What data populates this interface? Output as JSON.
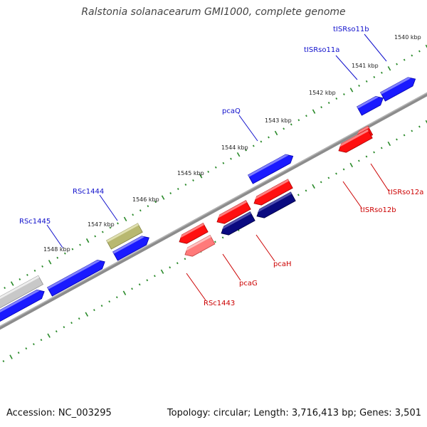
{
  "title": "Ralstonia solanacearum GMI1000, complete genome",
  "accession": "Accession: NC_003295",
  "topology": "Topology: circular; Length: 3,716,413 bp; Genes: 3,501",
  "colors": {
    "background": "#ffffff",
    "backbone": "#8c8c8c",
    "tick": "#2a8a2a",
    "forward_label": "#1010cc",
    "reverse_label": "#cc0000",
    "forward_gene": "#1a1aff",
    "reverse_gene": "#ff1010",
    "reverse_gene_dark": "#0a0a80",
    "olive_gene": "#b8b870",
    "grey_gene": "#c8c8c8",
    "pink_gene": "#ff7a7a"
  },
  "kbp_labels": [
    "1540 kbp",
    "1541 kbp",
    "1542 kbp",
    "1543 kbp",
    "1544 kbp",
    "1545 kbp",
    "1546 kbp",
    "1547 kbp",
    "1548 kbp"
  ],
  "gene_labels": [
    {
      "id": "tISRso11b",
      "strand": "forward"
    },
    {
      "id": "tISRso11a",
      "strand": "forward"
    },
    {
      "id": "pcaQ",
      "strand": "forward"
    },
    {
      "id": "RSc1444",
      "strand": "forward"
    },
    {
      "id": "RSc1445",
      "strand": "forward"
    },
    {
      "id": "tISRso12a",
      "strand": "reverse"
    },
    {
      "id": "tISRso12b",
      "strand": "reverse"
    },
    {
      "id": "pcaH",
      "strand": "reverse"
    },
    {
      "id": "pcaG",
      "strand": "reverse"
    },
    {
      "id": "RSc1443",
      "strand": "reverse"
    }
  ]
}
